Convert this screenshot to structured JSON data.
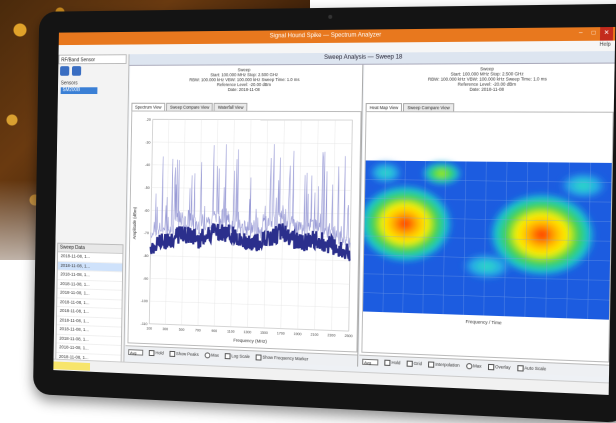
{
  "app": {
    "title": "Signal Hound Spike — Spectrum Analyzer",
    "menu_right": "Help"
  },
  "left_panel": {
    "tab_label": "RF/Band Sensor",
    "tree_label": "Sensors",
    "selected_item": "SM200B",
    "list_header": "Sweep Data",
    "list_items": [
      "2018-11-08, 1...",
      "2018-11-08, 1...",
      "2018-11-08, 1...",
      "2018-11-08, 1...",
      "2018-11-08, 1...",
      "2018-11-08, 1...",
      "2018-11-08, 1...",
      "2018-11-08, 1...",
      "2018-11-08, 1...",
      "2018-11-08, 1...",
      "2018-11-08, 1...",
      "2018-11-08, 1...",
      "2018-11-08, 1...",
      "2018-11-08, 1...",
      "2018-11-08, 1...",
      "2018-11-08, 1..."
    ]
  },
  "main": {
    "header": "Sweep Analysis — Sweep 18",
    "left_pane": {
      "info_lines": [
        "Sweep",
        "Start: 100.000 MHz  Stop: 2.500 GHz",
        "RBW: 100.000 kHz  VBW: 100.000 kHz  Sweep Time: 1.0 ms",
        "Reference Level: -20.00 dBm",
        "Date: 2018-11-08"
      ],
      "tabs": [
        "Spectrum View",
        "Sweep Compare View",
        "Waterfall View"
      ],
      "bottom": {
        "dropdown": "Avg",
        "check_1": "Hold",
        "check_2": "Show Peaks",
        "radio_1": "Max",
        "check_3": "Log Scale",
        "check_4": "Show Frequency Marker"
      }
    },
    "right_pane": {
      "info_lines": [
        "Sweep",
        "Start: 100.000 MHz  Stop: 2.500 GHz",
        "RBW: 100.000 kHz  VBW: 100.000 kHz  Sweep Time: 1.0 ms",
        "Reference Level: -20.00 dBm",
        "Date: 2018-11-08"
      ],
      "tabs": [
        "Heat Map View",
        "Sweep Compare View"
      ],
      "map_label": "Frequency / Time",
      "bottom": {
        "dropdown": "Avg",
        "check_1": "Hold",
        "check_2": "Grid",
        "check_3": "Interpolation",
        "radio_1": "Max",
        "check_4": "Overlay",
        "check_5": "Auto Scale"
      }
    }
  },
  "chart_data": {
    "type": "line",
    "title": "",
    "xlabel": "Frequency (MHz)",
    "ylabel": "Amplitude (dBm)",
    "x": [
      100,
      300,
      500,
      700,
      900,
      1100,
      1300,
      1500,
      1700,
      1900,
      2100,
      2300,
      2500
    ],
    "xlim": [
      100,
      2500
    ],
    "ylim": [
      -110,
      -20
    ],
    "series": [
      {
        "values": [
          -76,
          -73,
          -70,
          -72,
          -68,
          -70,
          -74,
          -72,
          -68,
          -73,
          -71,
          -74,
          -77
        ],
        "color": "#2b2f8c"
      }
    ],
    "grid": true
  },
  "colors": {
    "accent": "#e8781e",
    "trace": "#2b2f8c",
    "peaks": "#9a9cd6"
  }
}
